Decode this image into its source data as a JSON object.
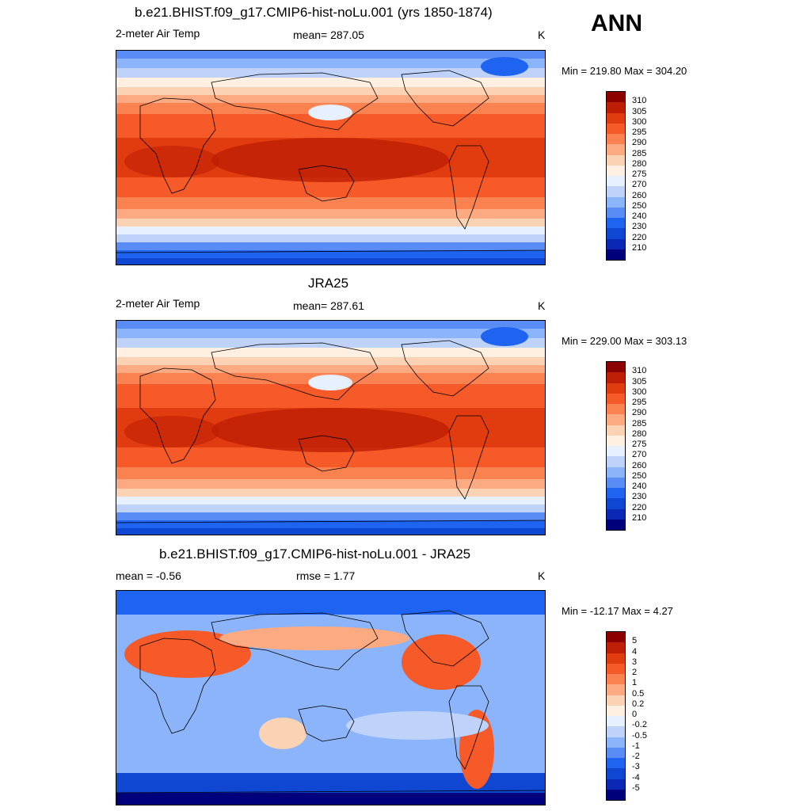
{
  "season": "ANN",
  "colors": {
    "abs_scale": [
      "#00007d",
      "#0a28b4",
      "#0f46d2",
      "#1e64f0",
      "#5a8cf5",
      "#8cb4fa",
      "#bed2fa",
      "#e6f0ff",
      "#fff0e1",
      "#fcd2b4",
      "#fcaa82",
      "#fa8250",
      "#f55a28",
      "#e13c0f",
      "#be1e05",
      "#8c0000"
    ],
    "diff_scale": [
      "#00007d",
      "#0a28b4",
      "#0f46d2",
      "#1e64f0",
      "#5a8cf5",
      "#8cb4fa",
      "#bed2fa",
      "#e6f0ff",
      "#fff0e1",
      "#fcd2b4",
      "#fcaa82",
      "#fa8250",
      "#f55a28",
      "#e13c0f",
      "#be1e05",
      "#8c0000"
    ]
  },
  "panels": [
    {
      "title": "b.e21.BHIST.f09_g17.CMIP6-hist-noLu.001 (yrs 1850-1874)",
      "left_label": "2-meter Air Temp",
      "center_label": "mean= 287.05",
      "units": "K",
      "minmax": "Min = 219.80 Max = 304.20",
      "colorbar_labels": [
        "310",
        "305",
        "300",
        "295",
        "290",
        "285",
        "280",
        "275",
        "270",
        "260",
        "250",
        "240",
        "230",
        "220",
        "210"
      ]
    },
    {
      "title": "JRA25",
      "left_label": "2-meter Air Temp",
      "center_label": "mean= 287.61",
      "units": "K",
      "minmax": "Min = 229.00 Max = 303.13",
      "colorbar_labels": [
        "310",
        "305",
        "300",
        "295",
        "290",
        "285",
        "280",
        "275",
        "270",
        "260",
        "250",
        "240",
        "230",
        "220",
        "210"
      ]
    },
    {
      "title": "b.e21.BHIST.f09_g17.CMIP6-hist-noLu.001 - JRA25",
      "left_label": "mean =  -0.56",
      "center_label": "rmse =   1.77",
      "units": "K",
      "minmax": "Min = -12.17 Max =   4.27",
      "colorbar_labels": [
        "5",
        "4",
        "3",
        "2",
        "1",
        "0.5",
        "0.2",
        "0",
        "-0.2",
        "-0.5",
        "-1",
        "-2",
        "-3",
        "-4",
        "-5"
      ]
    }
  ]
}
